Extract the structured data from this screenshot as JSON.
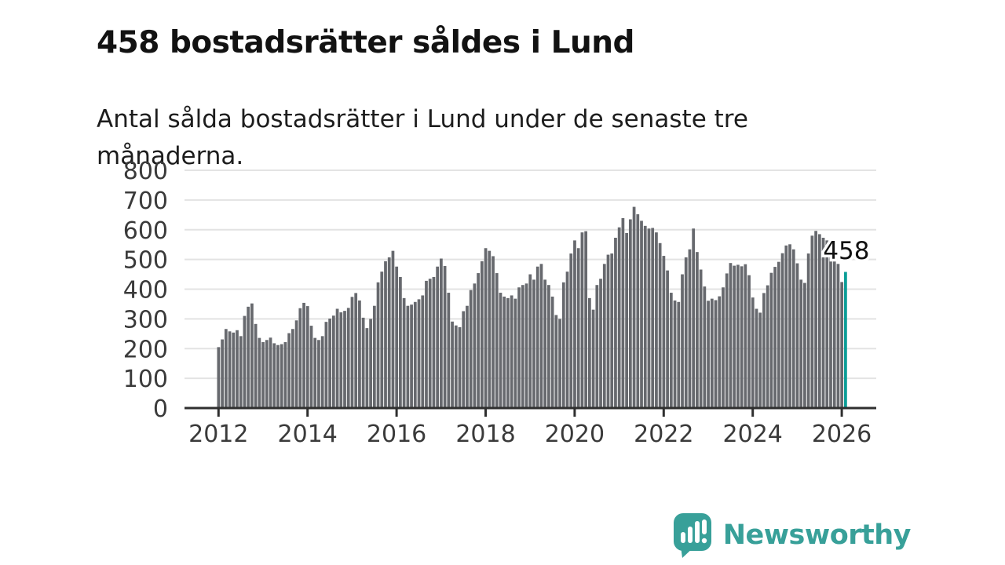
{
  "header": {
    "title": "458 bostadsrätter såldes i Lund",
    "subtitle": "Antal sålda bostadsrätter i Lund under de senaste tre månaderna."
  },
  "footer": {
    "brand": "Newsworthy",
    "logo_icon": "bar-chart-speech-bubble-icon"
  },
  "theme": {
    "bar_color": "#67696E",
    "highlight_color": "#0B9E97",
    "grid_color": "#E3E3E3",
    "axis_color": "#2F2F2F",
    "tick_text_color": "#3A3A3A",
    "annotation_color": "#111111",
    "brand_teal": "#38A099",
    "background": "#FFFFFF"
  },
  "chart_data": {
    "type": "bar",
    "title": "458 bostadsrätter såldes i Lund",
    "subtitle": "Antal sålda bostadsrätter i Lund under de senaste tre månaderna.",
    "xlabel": "",
    "ylabel": "",
    "ylim": [
      0,
      800
    ],
    "grid": true,
    "y_ticks": [
      0,
      100,
      200,
      300,
      400,
      500,
      600,
      700,
      800
    ],
    "x_tick_labels": [
      "2012",
      "2014",
      "2016",
      "2018",
      "2020",
      "2022",
      "2024",
      "2026"
    ],
    "x_tick_every_n_bars": 24,
    "bars_are_monthly": true,
    "first_bar_period": "2012",
    "highlight_last_bar": true,
    "last_value_label": "458",
    "values": [
      205,
      231,
      266,
      258,
      254,
      262,
      242,
      310,
      341,
      352,
      283,
      236,
      222,
      229,
      237,
      218,
      212,
      215,
      222,
      252,
      266,
      295,
      336,
      354,
      343,
      277,
      236,
      229,
      242,
      290,
      301,
      311,
      334,
      322,
      327,
      337,
      374,
      387,
      362,
      304,
      269,
      300,
      344,
      423,
      459,
      494,
      507,
      529,
      476,
      441,
      370,
      344,
      348,
      357,
      366,
      379,
      428,
      435,
      441,
      476,
      503,
      478,
      388,
      291,
      278,
      272,
      326,
      344,
      397,
      419,
      454,
      494,
      538,
      529,
      511,
      454,
      388,
      375,
      370,
      379,
      368,
      406,
      414,
      419,
      450,
      432,
      476,
      485,
      432,
      414,
      375,
      313,
      300,
      423,
      459,
      520,
      564,
      538,
      591,
      595,
      370,
      331,
      414,
      435,
      485,
      516,
      520,
      573,
      608,
      639,
      589,
      635,
      677,
      652,
      630,
      613,
      604,
      606,
      591,
      555,
      512,
      463,
      388,
      362,
      357,
      450,
      507,
      534,
      604,
      525,
      466,
      409,
      361,
      368,
      363,
      376,
      406,
      453,
      488,
      479,
      482,
      477,
      484,
      447,
      372,
      334,
      321,
      387,
      413,
      455,
      475,
      492,
      521,
      547,
      551,
      534,
      487,
      432,
      421,
      520,
      580,
      596,
      585,
      573,
      564,
      553,
      505,
      485,
      424,
      458
    ]
  }
}
